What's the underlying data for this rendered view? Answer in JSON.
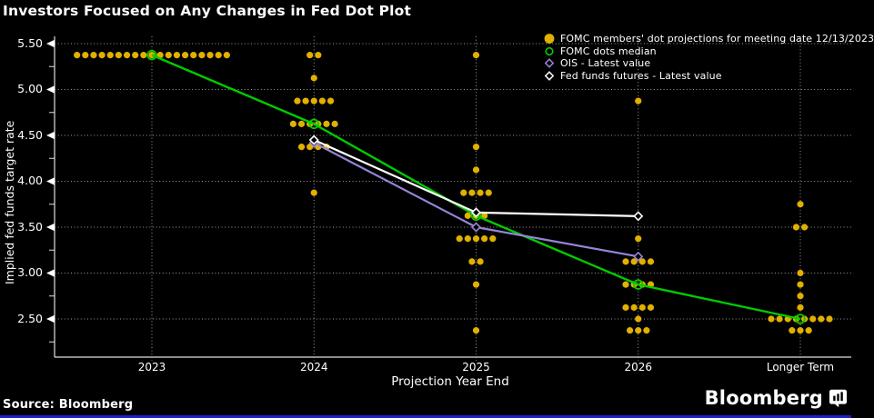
{
  "title": "Investors Focused on Any Changes in Fed Dot Plot",
  "source_label": "Source: Bloomberg",
  "brand": {
    "logo_text": "Bloomberg",
    "logo_icon": "bar-chart-speech-bubble-icon"
  },
  "colors": {
    "background": "#000000",
    "dots": "#e1b000",
    "median": "#00cc00",
    "ois": "#9884d8",
    "futures": "#ffffff",
    "grid": "#9b9b9b",
    "axis": "#e0e0e0",
    "text": "#ffffff",
    "bottom_bar": "#2020c8"
  },
  "legend": {
    "position": "top-right",
    "items": [
      {
        "label": "FOMC members' dot projections for meeting date 12/13/2023",
        "marker": "filled-circle",
        "color_key": "dots"
      },
      {
        "label": "FOMC dots median",
        "marker": "hollow-circle",
        "color_key": "median"
      },
      {
        "label": "OIS - Latest value",
        "marker": "hollow-diamond",
        "color_key": "ois"
      },
      {
        "label": "Fed funds futures - Latest value",
        "marker": "hollow-diamond",
        "color_key": "futures"
      }
    ]
  },
  "chart_data": {
    "type": "scatter",
    "title": "Investors Focused on Any Changes in Fed Dot Plot",
    "xlabel": "Projection Year End",
    "ylabel": "Implied fed funds target rate",
    "categories": [
      "2023",
      "2024",
      "2025",
      "2026",
      "Longer Term"
    ],
    "y_ticks": [
      "5.50",
      "5.00",
      "4.50",
      "4.00",
      "3.50",
      "3.00",
      "2.50"
    ],
    "y_minor_ticks": [
      5.25,
      4.75,
      4.25,
      3.75,
      3.25,
      2.75,
      2.25
    ],
    "ylim": [
      2.2,
      5.6
    ],
    "grid": "dotted",
    "legend_position": "top-right",
    "dot_projections": [
      {
        "category": "2023",
        "dots": [
          {
            "rate": 5.375,
            "count": 19
          }
        ]
      },
      {
        "category": "2024",
        "dots": [
          {
            "rate": 5.375,
            "count": 2
          },
          {
            "rate": 5.125,
            "count": 1
          },
          {
            "rate": 4.875,
            "count": 5
          },
          {
            "rate": 4.625,
            "count": 6
          },
          {
            "rate": 4.375,
            "count": 4
          },
          {
            "rate": 3.875,
            "count": 1
          }
        ]
      },
      {
        "category": "2025",
        "dots": [
          {
            "rate": 5.375,
            "count": 1
          },
          {
            "rate": 4.375,
            "count": 1
          },
          {
            "rate": 4.125,
            "count": 1
          },
          {
            "rate": 3.875,
            "count": 4
          },
          {
            "rate": 3.625,
            "count": 3
          },
          {
            "rate": 3.375,
            "count": 5
          },
          {
            "rate": 3.125,
            "count": 2
          },
          {
            "rate": 2.875,
            "count": 1
          },
          {
            "rate": 2.375,
            "count": 1
          }
        ]
      },
      {
        "category": "2026",
        "dots": [
          {
            "rate": 4.875,
            "count": 1
          },
          {
            "rate": 3.625,
            "count": 1
          },
          {
            "rate": 3.375,
            "count": 1
          },
          {
            "rate": 3.125,
            "count": 4
          },
          {
            "rate": 2.875,
            "count": 4
          },
          {
            "rate": 2.625,
            "count": 4
          },
          {
            "rate": 2.5,
            "count": 1
          },
          {
            "rate": 2.375,
            "count": 3
          }
        ]
      },
      {
        "category": "Longer Term",
        "dots": [
          {
            "rate": 3.75,
            "count": 1
          },
          {
            "rate": 3.5,
            "count": 2
          },
          {
            "rate": 3.0,
            "count": 1
          },
          {
            "rate": 2.875,
            "count": 1
          },
          {
            "rate": 2.75,
            "count": 1
          },
          {
            "rate": 2.625,
            "count": 1
          },
          {
            "rate": 2.5,
            "count": 8
          },
          {
            "rate": 2.375,
            "count": 3
          }
        ]
      }
    ],
    "series": [
      {
        "name": "FOMC dots median",
        "style": "line",
        "marker": "hollow-circle",
        "color_key": "median",
        "width": 2.4,
        "points": [
          [
            "2023",
            5.375
          ],
          [
            "2024",
            4.625
          ],
          [
            "2025",
            3.625
          ],
          [
            "2026",
            2.875
          ],
          [
            "Longer Term",
            2.5
          ]
        ]
      },
      {
        "name": "OIS - Latest value",
        "style": "line",
        "marker": "hollow-diamond",
        "color_key": "ois",
        "width": 2.2,
        "points": [
          [
            "2024",
            4.42
          ],
          [
            "2025",
            3.5
          ],
          [
            "2026",
            3.18
          ]
        ]
      },
      {
        "name": "Fed funds futures - Latest value",
        "style": "line",
        "marker": "hollow-diamond",
        "color_key": "futures",
        "width": 2.2,
        "points": [
          [
            "2024",
            4.45
          ],
          [
            "2025",
            3.66
          ],
          [
            "2026",
            3.62
          ]
        ]
      }
    ]
  }
}
